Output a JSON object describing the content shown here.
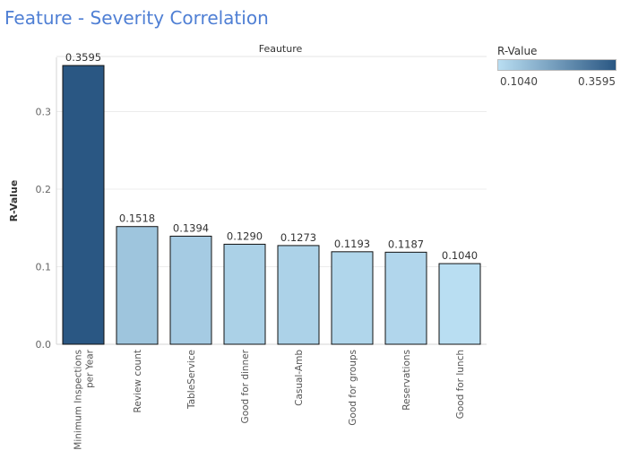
{
  "title": "Feature - Severity Correlation",
  "chart_data": {
    "type": "bar",
    "header": "Feauture",
    "ylabel": "R-Value",
    "ylim": [
      0,
      0.37
    ],
    "yticks": [
      0.0,
      0.1,
      0.2,
      0.3
    ],
    "ytick_labels": [
      "0.0",
      "0.1",
      "0.2",
      "0.3"
    ],
    "grid": true,
    "categories": [
      [
        "Minimum Inspections",
        "per Year"
      ],
      [
        "Review count"
      ],
      [
        "TableService"
      ],
      [
        "Good for dinner"
      ],
      [
        "Casual-Amb"
      ],
      [
        "Good for groups"
      ],
      [
        "Reservations"
      ],
      [
        "Good for lunch"
      ]
    ],
    "values": [
      0.3595,
      0.1518,
      0.1394,
      0.129,
      0.1273,
      0.1193,
      0.1187,
      0.104
    ],
    "value_labels": [
      "0.3595",
      "0.1518",
      "0.1394",
      "0.1290",
      "0.1273",
      "0.1193",
      "0.1187",
      "0.1040"
    ],
    "legend": {
      "title": "R-Value",
      "min_label": "0.1040",
      "max_label": "0.3595",
      "min": 0.104,
      "max": 0.3595,
      "color_low": "#b9def2",
      "color_high": "#2a5783",
      "placement": "top-right"
    }
  }
}
